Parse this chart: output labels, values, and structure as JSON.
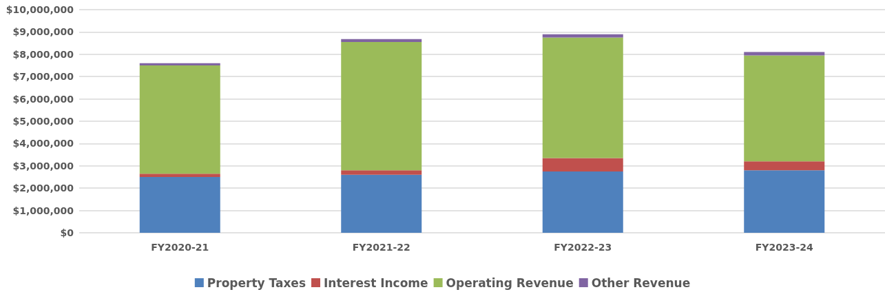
{
  "chart_data": {
    "type": "bar",
    "stacked": true,
    "categories": [
      "FY2020-21",
      "FY2021-22",
      "FY2022-23",
      "FY2023-24"
    ],
    "series": [
      {
        "name": "Property Taxes",
        "color": "#4f81bd",
        "values": [
          2500000,
          2600000,
          2750000,
          2800000
        ]
      },
      {
        "name": "Interest Income",
        "color": "#c0504d",
        "values": [
          150000,
          200000,
          600000,
          400000
        ]
      },
      {
        "name": "Operating Revenue",
        "color": "#9bbb59",
        "values": [
          4850000,
          5750000,
          5400000,
          4750000
        ]
      },
      {
        "name": "Other Revenue",
        "color": "#8064a2",
        "values": [
          100000,
          130000,
          150000,
          150000
        ]
      }
    ],
    "ylim": [
      0,
      10000000
    ],
    "yticks": [
      {
        "value": 0,
        "label": "$0"
      },
      {
        "value": 1000000,
        "label": "$1,000,000"
      },
      {
        "value": 2000000,
        "label": "$2,000,000"
      },
      {
        "value": 3000000,
        "label": "$3,000,000"
      },
      {
        "value": 4000000,
        "label": "$4,000,000"
      },
      {
        "value": 5000000,
        "label": "$5,000,000"
      },
      {
        "value": 6000000,
        "label": "$6,000,000"
      },
      {
        "value": 7000000,
        "label": "$7,000,000"
      },
      {
        "value": 8000000,
        "label": "$8,000,000"
      },
      {
        "value": 9000000,
        "label": "$9,000,000"
      },
      {
        "value": 10000000,
        "label": "$10,000,000"
      }
    ],
    "grid": "y",
    "legend": "bottom"
  }
}
